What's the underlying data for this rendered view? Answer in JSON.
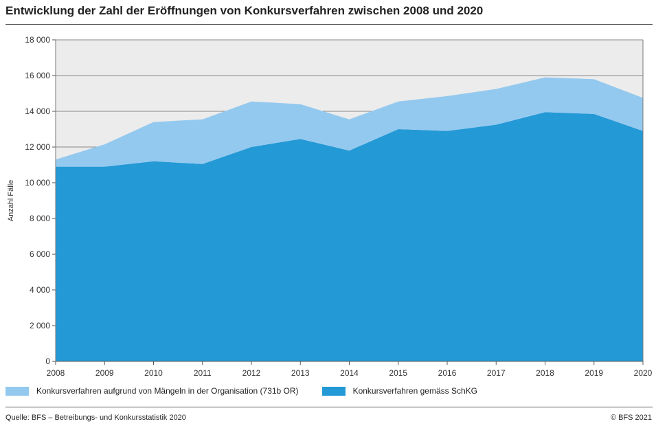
{
  "header": {
    "title": "Entwicklung der Zahl der Eröffnungen von Konkursverfahren zwischen 2008 und 2020"
  },
  "footer": {
    "source": "Quelle: BFS – Betreibungs- und Konkursstatistik 2020",
    "copyright": "© BFS 2021"
  },
  "chart_data": {
    "type": "area",
    "stacked": true,
    "title": "Entwicklung der Zahl der Eröffnungen von Konkursverfahren zwischen 2008 und 2020",
    "xlabel": "",
    "ylabel": "Anzahl Fälle",
    "x": [
      "2008",
      "2009",
      "2010",
      "2011",
      "2012",
      "2013",
      "2014",
      "2015",
      "2016",
      "2017",
      "2018",
      "2019",
      "2020"
    ],
    "ylim": [
      0,
      18000
    ],
    "yticks": [
      0,
      2000,
      4000,
      6000,
      8000,
      10000,
      12000,
      14000,
      16000,
      18000
    ],
    "ytick_labels": [
      "0",
      "2 000",
      "4 000",
      "6 000",
      "8 000",
      "10 000",
      "12 000",
      "14 000",
      "16 000",
      "18 000"
    ],
    "grid": true,
    "legend_position": "bottom",
    "series": [
      {
        "name": "Konkursverfahren gemäss SchKG",
        "color": "#2399d6",
        "values": [
          10900,
          10900,
          11200,
          11050,
          12000,
          12450,
          11800,
          13000,
          12900,
          13250,
          13950,
          13850,
          12900
        ]
      },
      {
        "name": "Konkursverfahren aufgrund von Mängeln in der Organisation (731b OR)",
        "color": "#94c9ef",
        "values": [
          400,
          1250,
          2200,
          2500,
          2550,
          1950,
          1750,
          1550,
          1950,
          2000,
          1950,
          1950,
          1850
        ]
      }
    ]
  }
}
